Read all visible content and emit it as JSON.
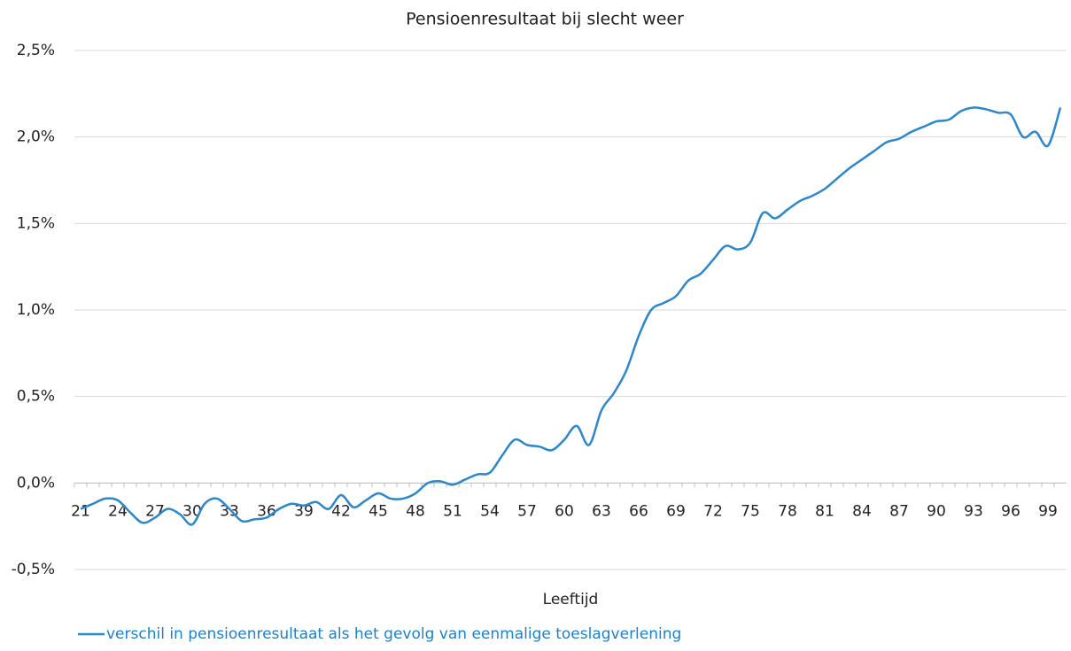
{
  "chart_data": {
    "type": "line",
    "title": "Pensioenresultaat bij slecht weer",
    "x_label": "Leeftijd",
    "x": [
      21,
      22,
      23,
      24,
      25,
      26,
      27,
      28,
      29,
      30,
      31,
      32,
      33,
      34,
      35,
      36,
      37,
      38,
      39,
      40,
      41,
      42,
      43,
      44,
      45,
      46,
      47,
      48,
      49,
      50,
      51,
      52,
      53,
      54,
      55,
      56,
      57,
      58,
      59,
      60,
      61,
      62,
      63,
      64,
      65,
      66,
      67,
      68,
      69,
      70,
      71,
      72,
      73,
      74,
      75,
      76,
      77,
      78,
      79,
      80,
      81,
      82,
      83,
      84,
      85,
      86,
      87,
      88,
      89,
      90,
      91,
      92,
      93,
      94,
      95,
      96,
      97,
      98,
      99,
      100
    ],
    "xlim": [
      20.5,
      100.5
    ],
    "xticks": [
      21,
      24,
      27,
      30,
      33,
      36,
      39,
      42,
      45,
      48,
      51,
      54,
      57,
      60,
      63,
      66,
      69,
      72,
      75,
      78,
      81,
      84,
      87,
      90,
      93,
      96,
      99
    ],
    "ylim": [
      -0.5,
      2.5
    ],
    "yticks": [
      {
        "value": -0.5,
        "label": "-0,5%"
      },
      {
        "value": 0,
        "label": "0,0%"
      },
      {
        "value": 0.5,
        "label": "0,5%"
      },
      {
        "value": 1,
        "label": "1,0%"
      },
      {
        "value": 1.5,
        "label": "1,5%"
      },
      {
        "value": 2,
        "label": "2,0%"
      },
      {
        "value": 2.5,
        "label": "2,5%"
      }
    ],
    "grid": true,
    "legend": "bottom-left",
    "series": [
      {
        "name": "verschil in pensioenresultaat als het gevolg van eenmalige toeslagverlening",
        "color": "#2f86c8",
        "values": [
          -0.15,
          -0.12,
          -0.09,
          -0.1,
          -0.17,
          -0.23,
          -0.2,
          -0.15,
          -0.18,
          -0.24,
          -0.12,
          -0.09,
          -0.15,
          -0.22,
          -0.21,
          -0.2,
          -0.15,
          -0.12,
          -0.13,
          -0.11,
          -0.15,
          -0.07,
          -0.14,
          -0.1,
          -0.06,
          -0.09,
          -0.09,
          -0.06,
          0.0,
          0.01,
          -0.01,
          0.02,
          0.05,
          0.06,
          0.16,
          0.25,
          0.22,
          0.21,
          0.19,
          0.25,
          0.33,
          0.22,
          0.42,
          0.52,
          0.65,
          0.85,
          1.0,
          1.04,
          1.08,
          1.17,
          1.21,
          1.29,
          1.37,
          1.35,
          1.39,
          1.56,
          1.53,
          1.58,
          1.63,
          1.66,
          1.7,
          1.76,
          1.82,
          1.87,
          1.92,
          1.97,
          1.99,
          2.03,
          2.06,
          2.09,
          2.1,
          2.15,
          2.17,
          2.16,
          2.14,
          2.13,
          2.0,
          2.03,
          1.95,
          2.17
        ]
      }
    ]
  }
}
